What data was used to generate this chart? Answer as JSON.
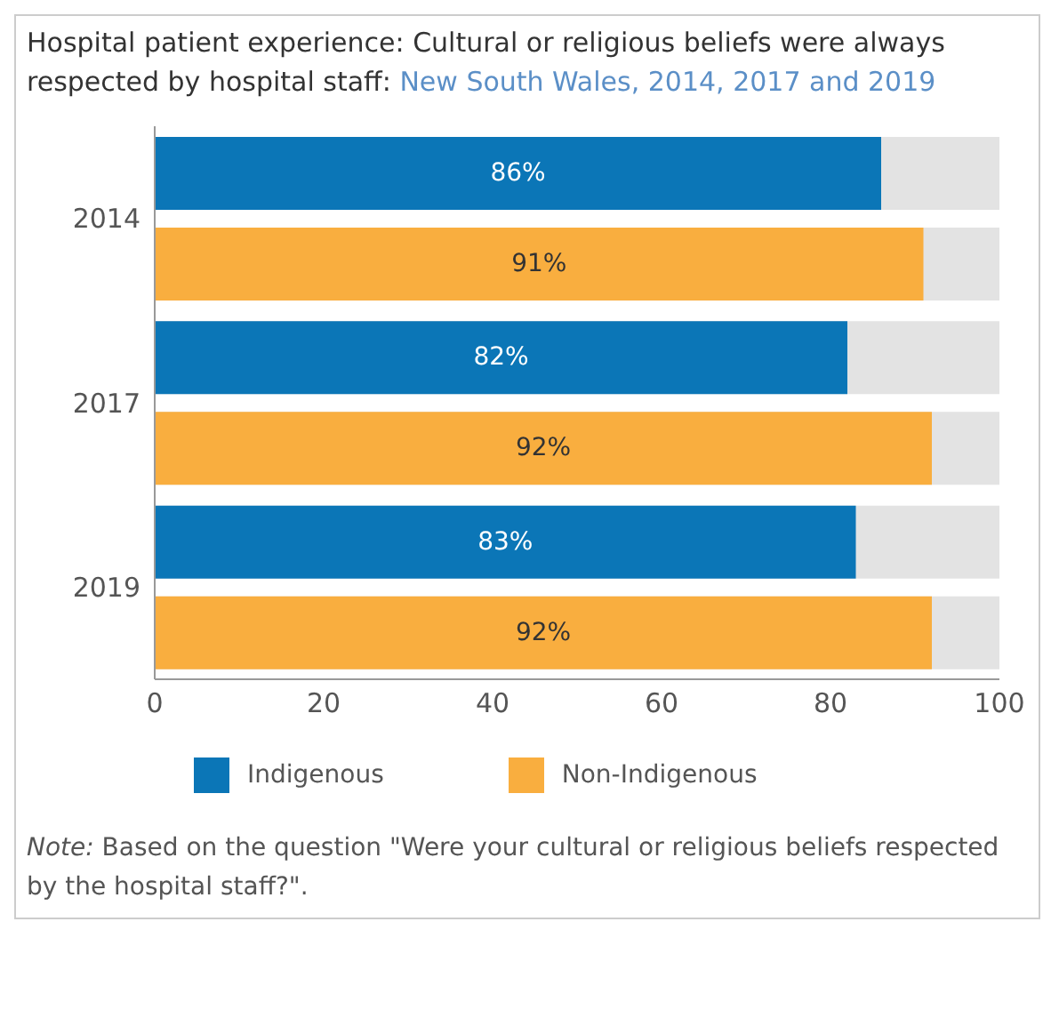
{
  "chart_data": {
    "type": "bar",
    "orientation": "horizontal",
    "title": "Hospital patient experience: Cultural or religious beliefs were always respected by hospital staff:",
    "subtitle": "New South Wales, 2014, 2017 and 2019",
    "categories": [
      "2014",
      "2017",
      "2019"
    ],
    "series": [
      {
        "name": "Indigenous",
        "color": "#0b76b7",
        "values": [
          86,
          82,
          83
        ],
        "value_labels": [
          "86%",
          "82%",
          "83%"
        ]
      },
      {
        "name": "Non-Indigenous",
        "color": "#f9ae3f",
        "values": [
          91,
          92,
          92
        ],
        "value_labels": [
          "91%",
          "92%",
          "92%"
        ]
      }
    ],
    "xlim": [
      0,
      100
    ],
    "xticks": [
      0,
      20,
      40,
      60,
      80,
      100
    ],
    "legend": "bottom",
    "annotations": [
      "Note: Based on the question \"Were your cultural or religious beliefs respected by the hospital staff?\"."
    ]
  }
}
